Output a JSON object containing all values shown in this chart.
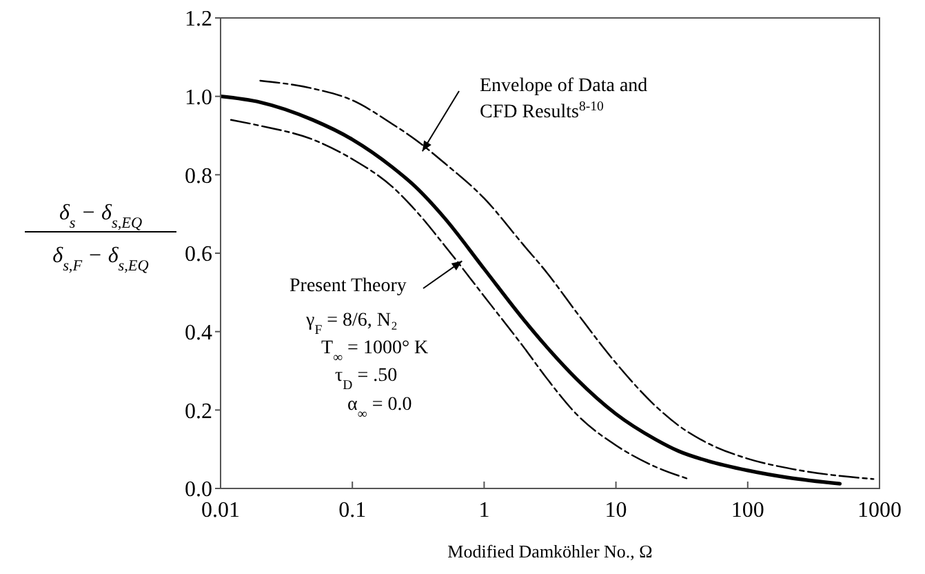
{
  "chart_data": {
    "type": "line",
    "xlabel": "Modified Damköhler No., Ω",
    "ylabel": "δ$_{s}$ − δ$_{s,EQ}$\nδ$_{s,F}$ − δ$_{s,EQ}$",
    "log": "x",
    "xlim": [
      0.01,
      1000
    ],
    "xticks": [
      0.01,
      0.1,
      1,
      10,
      100,
      1000
    ],
    "ylim": [
      0,
      1.2
    ],
    "yticks": [
      {
        "value": 0,
        "label": "0.0"
      },
      0.2,
      0.4,
      0.6,
      0.8,
      {
        "value": 1,
        "label": "1.0"
      },
      1.2
    ],
    "series": [
      {
        "color": "#000000",
        "line_style": "solid",
        "x": [
          0.01,
          0.02,
          0.05,
          0.1,
          0.2,
          0.3,
          0.5,
          1,
          2,
          3,
          5,
          10,
          20,
          30,
          50,
          100,
          200,
          500
        ],
        "values": [
          1.0,
          0.985,
          0.94,
          0.89,
          0.82,
          0.77,
          0.69,
          0.56,
          0.43,
          0.36,
          0.28,
          0.19,
          0.125,
          0.095,
          0.07,
          0.046,
          0.028,
          0.012
        ]
      },
      {
        "color": "#000000",
        "line_style": "dashed",
        "x": [
          0.02,
          0.05,
          0.1,
          0.2,
          0.3,
          0.5,
          1,
          2,
          3,
          5,
          10,
          20,
          30,
          50,
          100,
          200,
          500,
          900
        ],
        "values": [
          1.04,
          1.02,
          0.99,
          0.93,
          0.89,
          0.83,
          0.74,
          0.62,
          0.55,
          0.45,
          0.32,
          0.21,
          0.16,
          0.115,
          0.076,
          0.052,
          0.032,
          0.024
        ]
      },
      {
        "color": "#000000",
        "line_style": "dashed",
        "x": [
          0.012,
          0.02,
          0.05,
          0.1,
          0.2,
          0.3,
          0.5,
          1,
          2,
          3,
          5,
          10,
          20,
          35
        ],
        "values": [
          0.94,
          0.925,
          0.89,
          0.84,
          0.77,
          0.71,
          0.62,
          0.49,
          0.36,
          0.28,
          0.19,
          0.11,
          0.055,
          0.025
        ]
      }
    ],
    "annotations": [
      {
        "text": "Envelope of Data and CFD Results$^{8-10}$",
        "x": 0.34,
        "y": 0.86
      },
      {
        "text": "Present Theory",
        "x": 0.68,
        "y": 0.58
      },
      "γ$_{F}$ = 8/6, N₂",
      "T$_{∞}$ = 1000° K",
      "τ$_{D}$ = .50",
      "α$_{∞}$ = 0.0"
    ]
  }
}
